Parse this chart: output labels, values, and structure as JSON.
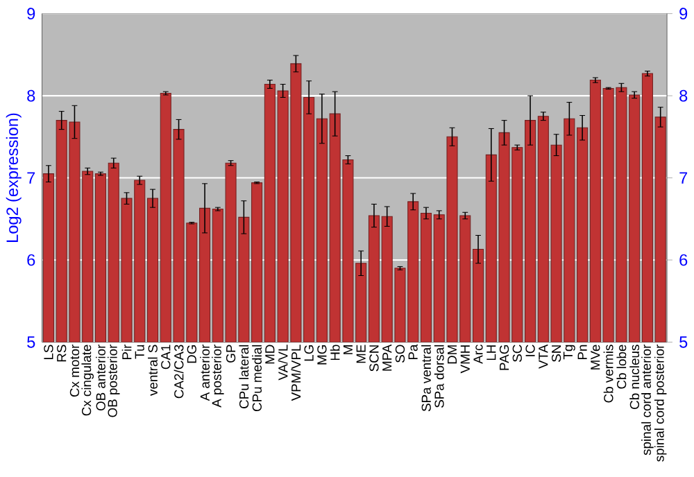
{
  "chart_data": {
    "type": "bar",
    "ylabel": "Log2 (expression)",
    "categories": [
      "LS",
      "RS",
      "Cx motor",
      "Cx cingulate",
      "OB anterior",
      "OB posterior",
      "Pir",
      "Tu",
      "ventral S",
      "CA1",
      "CA2/CA3",
      "DG",
      "A anterior",
      "A posterior",
      "GP",
      "CPu lateral",
      "CPu medial",
      "MD",
      "VA/VL",
      "VPM/VPL",
      "LG",
      "MG",
      "Hb",
      "M",
      "ME",
      "SCN",
      "MPA",
      "SO",
      "Pa",
      "SPa ventral",
      "SPa dorsal",
      "DM",
      "VMH",
      "Arc",
      "LH",
      "PAG",
      "SC",
      "IC",
      "VTA",
      "SN",
      "Tg",
      "Pn",
      "MVe",
      "Cb vermis",
      "Cb lobe",
      "Cb nucleus",
      "spinal cord anterior",
      "spinal cord posterior"
    ],
    "values": [
      7.05,
      7.7,
      7.68,
      7.08,
      7.05,
      7.18,
      6.75,
      6.97,
      6.75,
      8.03,
      7.59,
      6.45,
      6.63,
      6.62,
      7.18,
      6.52,
      6.94,
      8.14,
      8.06,
      8.39,
      7.98,
      7.72,
      7.78,
      7.22,
      5.96,
      6.54,
      6.53,
      5.9,
      6.71,
      6.57,
      6.55,
      7.5,
      6.54,
      6.13,
      7.28,
      7.55,
      7.37,
      7.7,
      7.75,
      7.4,
      7.72,
      7.61,
      8.19,
      8.09,
      8.1,
      8.01,
      8.27,
      7.74
    ],
    "errors": [
      0.1,
      0.11,
      0.2,
      0.04,
      0.02,
      0.06,
      0.07,
      0.05,
      0.11,
      0.02,
      0.12,
      0.01,
      0.3,
      0.02,
      0.03,
      0.2,
      0.01,
      0.05,
      0.08,
      0.1,
      0.2,
      0.3,
      0.27,
      0.05,
      0.15,
      0.14,
      0.12,
      0.02,
      0.1,
      0.07,
      0.05,
      0.11,
      0.04,
      0.17,
      0.32,
      0.15,
      0.03,
      0.3,
      0.05,
      0.13,
      0.2,
      0.15,
      0.03,
      0.01,
      0.05,
      0.04,
      0.03,
      0.12
    ],
    "color": "#c03333",
    "ylim": [
      5,
      9
    ],
    "yticks": [
      5,
      6,
      7,
      8,
      9
    ],
    "y2lim": [
      5,
      9
    ],
    "y2ticks": [
      5,
      6,
      7,
      8,
      9
    ],
    "grid": "y"
  }
}
